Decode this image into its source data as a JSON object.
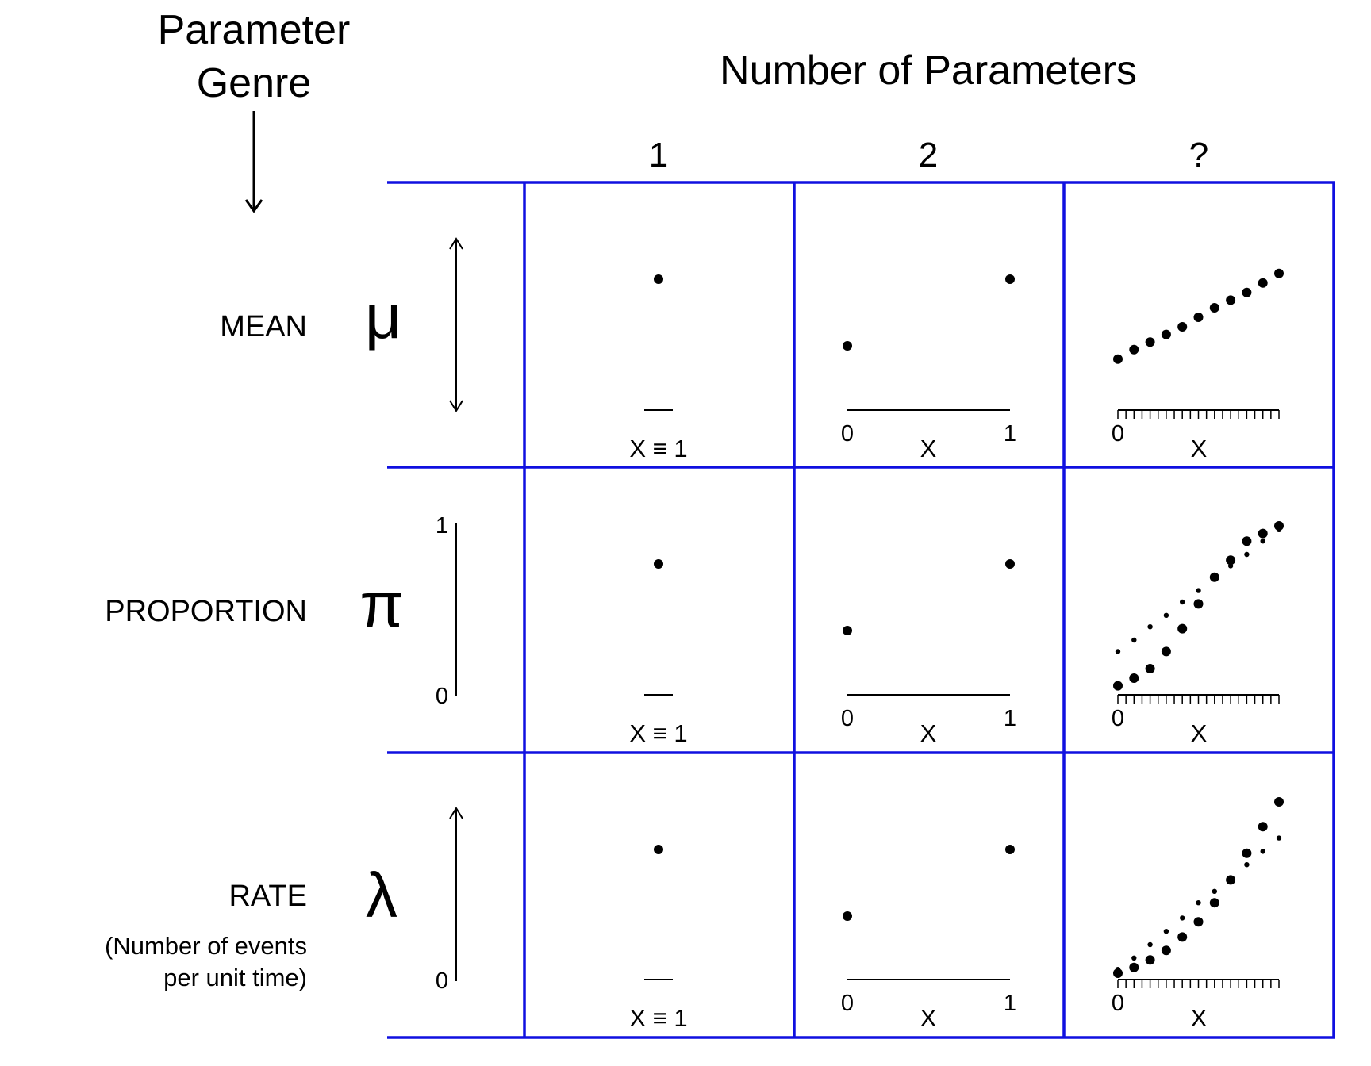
{
  "header": {
    "genre_line1": "Parameter",
    "genre_line2": "Genre",
    "number_title": "Number of Parameters"
  },
  "columns": [
    "1",
    "2",
    "?"
  ],
  "rows": [
    {
      "label": "MEAN",
      "symbol": "μ",
      "axis": "both-arrows",
      "ticks": []
    },
    {
      "label": "PROPORTION",
      "symbol": "π",
      "axis": "bounded",
      "ticks": [
        "1",
        "0"
      ]
    },
    {
      "label": "RATE",
      "sub1": "(Number of events",
      "sub2": "per unit time)",
      "symbol": "λ",
      "axis": "up-arrow",
      "ticks": [
        "0"
      ]
    }
  ],
  "cell_labels": {
    "x_identity": "X ≡ 1",
    "x": "X",
    "zero": "0",
    "one": "1"
  },
  "panels": {
    "one_param": [
      0.7,
      0.7,
      0.7
    ],
    "two_param": [
      {
        "x0": 0.35,
        "x1": 0.7
      },
      {
        "x0": 0.35,
        "x1": 0.7
      },
      {
        "x0": 0.35,
        "x1": 0.7
      }
    ],
    "many_param": [
      {
        "large": [
          0.28,
          0.33,
          0.37,
          0.41,
          0.45,
          0.5,
          0.55,
          0.59,
          0.63,
          0.68,
          0.73
        ]
      },
      {
        "large": [
          0.06,
          0.1,
          0.15,
          0.24,
          0.36,
          0.49,
          0.63,
          0.72,
          0.82,
          0.86,
          0.9
        ],
        "small": [
          0.24,
          0.3,
          0.37,
          0.43,
          0.5,
          0.56,
          0.63,
          0.69,
          0.75,
          0.82,
          0.88
        ]
      },
      {
        "large": [
          0.05,
          0.08,
          0.12,
          0.17,
          0.24,
          0.32,
          0.42,
          0.54,
          0.68,
          0.82,
          0.95
        ],
        "small": [
          0.07,
          0.13,
          0.2,
          0.27,
          0.34,
          0.42,
          0.48,
          0.55,
          0.62,
          0.69,
          0.76
        ]
      }
    ]
  }
}
